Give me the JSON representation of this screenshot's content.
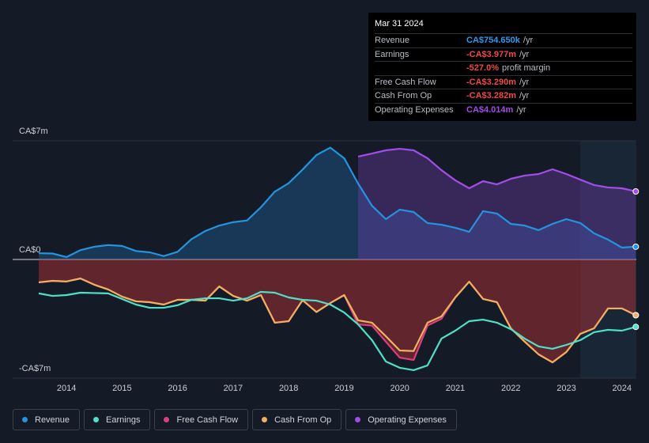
{
  "chart_data": {
    "type": "line",
    "x": [
      2013.5,
      2013.75,
      2014,
      2014.25,
      2014.5,
      2014.75,
      2015,
      2015.25,
      2015.5,
      2015.75,
      2016,
      2016.25,
      2016.5,
      2016.75,
      2017,
      2017.25,
      2017.5,
      2017.75,
      2018,
      2018.25,
      2018.5,
      2018.75,
      2019,
      2019.25,
      2019.5,
      2019.75,
      2020,
      2020.25,
      2020.5,
      2020.75,
      2021,
      2021.25,
      2021.5,
      2021.75,
      2022,
      2022.25,
      2022.5,
      2022.75,
      2023,
      2023.25,
      2023.5,
      2023.75,
      2024,
      2024.25
    ],
    "series": [
      {
        "name": "Revenue",
        "color": "#2394df",
        "fill": "rgba(35,110,180,0.35)",
        "values": [
          0.37,
          0.35,
          0.14,
          0.55,
          0.75,
          0.85,
          0.8,
          0.5,
          0.42,
          0.2,
          0.45,
          1.2,
          1.68,
          2.0,
          2.2,
          2.3,
          3.08,
          4.0,
          4.5,
          5.3,
          6.16,
          6.6,
          5.97,
          4.48,
          3.17,
          2.38,
          2.94,
          2.8,
          2.15,
          2.05,
          1.87,
          1.63,
          2.85,
          2.71,
          2.1,
          2.0,
          1.73,
          2.1,
          2.38,
          2.15,
          1.54,
          1.17,
          0.7,
          0.75465
        ]
      },
      {
        "name": "Earnings",
        "color": "#4fe0c8",
        "values": [
          -2.0,
          -2.15,
          -2.1,
          -1.96,
          -1.98,
          -2.0,
          -2.33,
          -2.66,
          -2.85,
          -2.85,
          -2.7,
          -2.38,
          -2.29,
          -2.29,
          -2.43,
          -2.29,
          -1.91,
          -1.96,
          -2.24,
          -2.38,
          -2.43,
          -2.66,
          -3.13,
          -3.83,
          -4.76,
          -6.02,
          -6.39,
          -6.53,
          -6.25,
          -4.67,
          -4.2,
          -3.64,
          -3.55,
          -3.73,
          -4.11,
          -4.67,
          -5.13,
          -5.27,
          -5.04,
          -4.76,
          -4.29,
          -4.15,
          -4.2,
          -3.977
        ]
      },
      {
        "name": "Free Cash Flow",
        "color": "#d9417e",
        "fill": "rgba(190,50,55,0.45)",
        "values": [
          -1.35,
          -1.26,
          -1.3,
          -1.12,
          -1.49,
          -1.77,
          -2.19,
          -2.47,
          -2.52,
          -2.66,
          -2.38,
          -2.38,
          -2.43,
          -1.59,
          -2.15,
          -2.43,
          -2.1,
          -3.73,
          -3.64,
          -2.4,
          -3.1,
          -2.57,
          -2.1,
          -3.83,
          -3.9,
          -4.85,
          -5.79,
          -5.93,
          -3.9,
          -3.5,
          -2.24,
          -1.31,
          -2.33,
          -2.52,
          -4.06,
          -4.85,
          -5.6,
          -6.07,
          -5.46,
          -4.39,
          -4.06,
          -2.89,
          -2.89,
          -3.29
        ]
      },
      {
        "name": "Cash From Op",
        "color": "#f0b060",
        "values": [
          -1.35,
          -1.26,
          -1.3,
          -1.12,
          -1.49,
          -1.77,
          -2.19,
          -2.47,
          -2.52,
          -2.66,
          -2.38,
          -2.38,
          -2.43,
          -1.59,
          -2.15,
          -2.43,
          -2.1,
          -3.73,
          -3.64,
          -2.4,
          -3.1,
          -2.57,
          -2.1,
          -3.59,
          -3.73,
          -4.53,
          -5.37,
          -5.4,
          -3.73,
          -3.36,
          -2.24,
          -1.31,
          -2.33,
          -2.52,
          -4.06,
          -4.85,
          -5.6,
          -6.07,
          -5.46,
          -4.39,
          -4.06,
          -2.89,
          -2.89,
          -3.282
        ]
      },
      {
        "name": "Operating Expenses",
        "color": "#a24de8",
        "fill": "rgba(110,60,170,0.4)",
        "values": [
          null,
          null,
          null,
          null,
          null,
          null,
          null,
          null,
          null,
          null,
          null,
          null,
          null,
          null,
          null,
          null,
          null,
          null,
          null,
          null,
          null,
          null,
          null,
          6.07,
          6.25,
          6.44,
          6.53,
          6.44,
          5.97,
          5.27,
          4.67,
          4.2,
          4.62,
          4.43,
          4.76,
          4.95,
          5.04,
          5.32,
          5.04,
          4.71,
          4.39,
          4.25,
          4.2,
          4.014
        ]
      }
    ],
    "xlim": [
      2013.03,
      2024.26
    ],
    "xticks": [
      2014,
      2015,
      2016,
      2017,
      2018,
      2019,
      2020,
      2021,
      2022,
      2023,
      2024
    ],
    "ylim": [
      -7,
      7
    ],
    "yticks": [
      {
        "value": 7,
        "label": "CA$7m"
      },
      {
        "value": 0,
        "label": "CA$0"
      },
      {
        "value": -7,
        "label": "-CA$7m"
      }
    ],
    "grid": true,
    "tooltip": {
      "date": "Mar 31 2024",
      "rows": [
        {
          "label": "Revenue",
          "value": "CA$754.650k",
          "unit": "/yr",
          "color": "#2e9bf0"
        },
        {
          "label": "Earnings",
          "value": "-CA$3.977m",
          "unit": "/yr",
          "color": "#f04848"
        },
        {
          "value": "-527.0%",
          "unit": "profit margin",
          "color": "#f04848"
        },
        {
          "label": "Free Cash Flow",
          "value": "-CA$3.290m",
          "unit": "/yr",
          "color": "#f04848"
        },
        {
          "label": "Cash From Op",
          "value": "-CA$3.282m",
          "unit": "/yr",
          "color": "#f04848"
        },
        {
          "label": "Operating Expenses",
          "value": "CA$4.014m",
          "unit": "/yr",
          "color": "#a24de8"
        }
      ]
    }
  }
}
